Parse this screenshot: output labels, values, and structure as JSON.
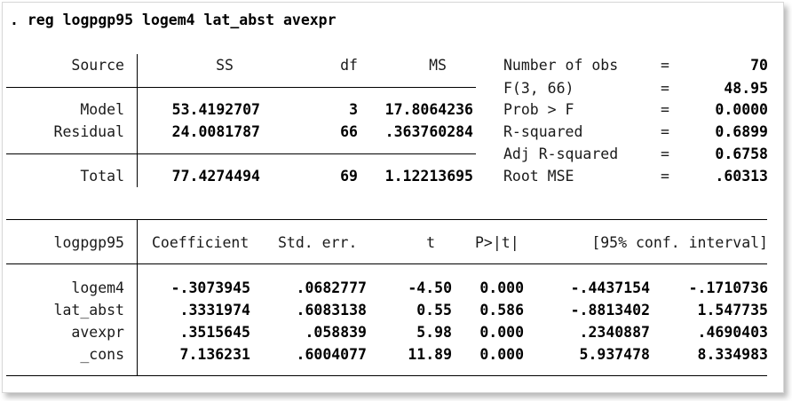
{
  "command": ". reg logpgp95 logem4 lat_abst avexpr",
  "anova": {
    "headers": {
      "source": "Source",
      "ss": "SS",
      "df": "df",
      "ms": "MS"
    },
    "rows": [
      {
        "source": "Model",
        "ss": "53.4192707",
        "df": "3",
        "ms": "17.8064236"
      },
      {
        "source": "Residual",
        "ss": "24.0081787",
        "df": "66",
        "ms": ".363760284"
      }
    ],
    "total": {
      "source": "Total",
      "ss": "77.4274494",
      "df": "69",
      "ms": "1.12213695"
    }
  },
  "stats": [
    {
      "label": "Number of obs",
      "eq": "=",
      "value": "70"
    },
    {
      "label": "F(3, 66)",
      "eq": "=",
      "value": "48.95"
    },
    {
      "label": "Prob > F",
      "eq": "=",
      "value": "0.0000"
    },
    {
      "label": "R-squared",
      "eq": "=",
      "value": "0.6899"
    },
    {
      "label": "Adj R-squared",
      "eq": "=",
      "value": "0.6758"
    },
    {
      "label": "Root MSE",
      "eq": "=",
      "value": ".60313"
    }
  ],
  "coef": {
    "headers": {
      "var": "logpgp95",
      "coef": "Coefficient",
      "se": "Std. err.",
      "t": "t",
      "p": "P>|t|",
      "ci": "[95% conf. interval]"
    },
    "rows": [
      {
        "var": "logem4",
        "coef": "-.3073945",
        "se": ".0682777",
        "t": "-4.50",
        "p": "0.000",
        "lo": "-.4437154",
        "hi": "-.1710736"
      },
      {
        "var": "lat_abst",
        "coef": ".3331974",
        "se": ".6083138",
        "t": "0.55",
        "p": "0.586",
        "lo": "-.8813402",
        "hi": "1.547735"
      },
      {
        "var": "avexpr",
        "coef": ".3515645",
        "se": ".058839",
        "t": "5.98",
        "p": "0.000",
        "lo": ".2340887",
        "hi": ".4690403"
      },
      {
        "var": "_cons",
        "coef": "7.136231",
        "se": ".6004077",
        "t": "11.89",
        "p": "0.000",
        "lo": "5.937478",
        "hi": "8.334983"
      }
    ]
  }
}
